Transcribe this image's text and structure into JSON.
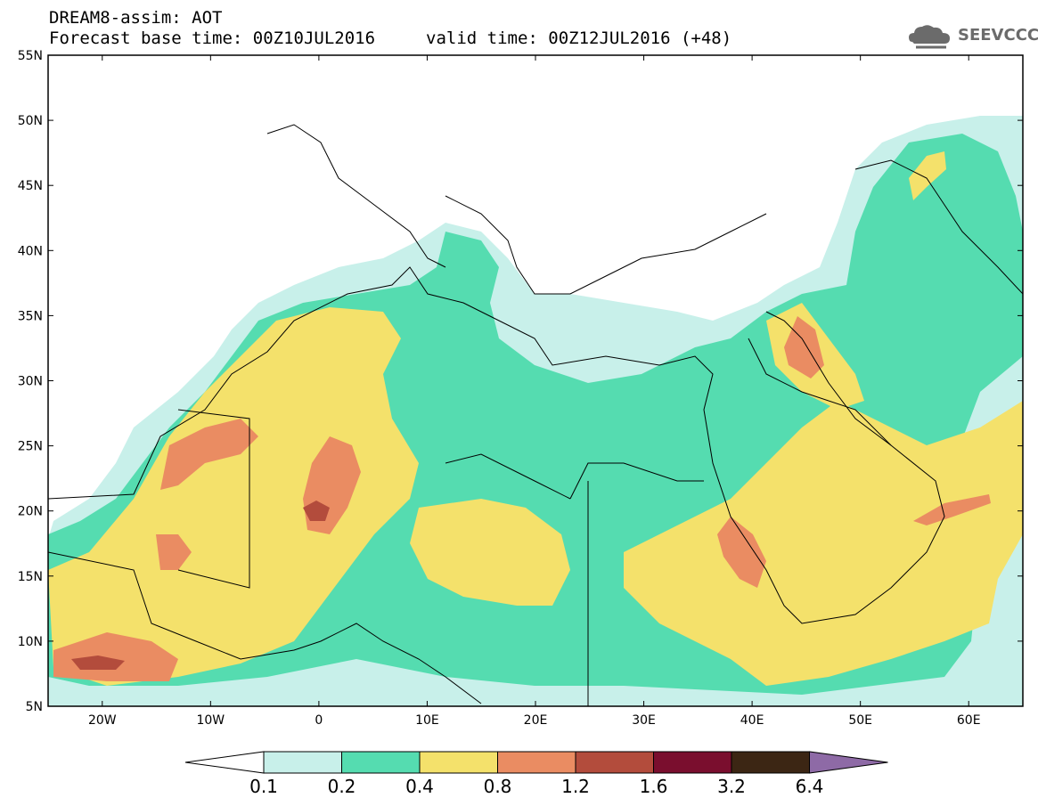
{
  "title": {
    "line1": "DREAM8-assim: AOT",
    "line2_base": "Forecast base time: 00Z10JUL2016",
    "line2_valid": "valid time: 00Z12JUL2016 (+48)"
  },
  "logo": {
    "text": "SEEVCCC",
    "icon": "cloud-icon",
    "color": "#6b6b6b"
  },
  "map": {
    "lon_range": [
      -25,
      65
    ],
    "lat_range": [
      5,
      55
    ],
    "lon_ticks": [
      {
        "value": -20,
        "label": "20W"
      },
      {
        "value": -10,
        "label": "10W"
      },
      {
        "value": 0,
        "label": "0"
      },
      {
        "value": 10,
        "label": "10E"
      },
      {
        "value": 20,
        "label": "20E"
      },
      {
        "value": 30,
        "label": "30E"
      },
      {
        "value": 40,
        "label": "40E"
      },
      {
        "value": 50,
        "label": "50E"
      },
      {
        "value": 60,
        "label": "60E"
      }
    ],
    "lat_ticks": [
      {
        "value": 55,
        "label": "55N"
      },
      {
        "value": 50,
        "label": "50N"
      },
      {
        "value": 45,
        "label": "45N"
      },
      {
        "value": 40,
        "label": "40N"
      },
      {
        "value": 35,
        "label": "35N"
      },
      {
        "value": 30,
        "label": "30N"
      },
      {
        "value": 25,
        "label": "25N"
      },
      {
        "value": 20,
        "label": "20N"
      },
      {
        "value": 15,
        "label": "15N"
      },
      {
        "value": 10,
        "label": "10N"
      },
      {
        "value": 5,
        "label": "5N"
      }
    ]
  },
  "colorbar": {
    "colors": [
      "#ffffff",
      "#c8f0ea",
      "#55dcb0",
      "#f4e16b",
      "#ea8c62",
      "#b34c3c",
      "#7a0e2e",
      "#3c2614",
      "#8e6aa6"
    ],
    "labels": [
      "0.1",
      "0.2",
      "0.4",
      "0.8",
      "1.2",
      "1.6",
      "3.2",
      "6.4"
    ]
  }
}
